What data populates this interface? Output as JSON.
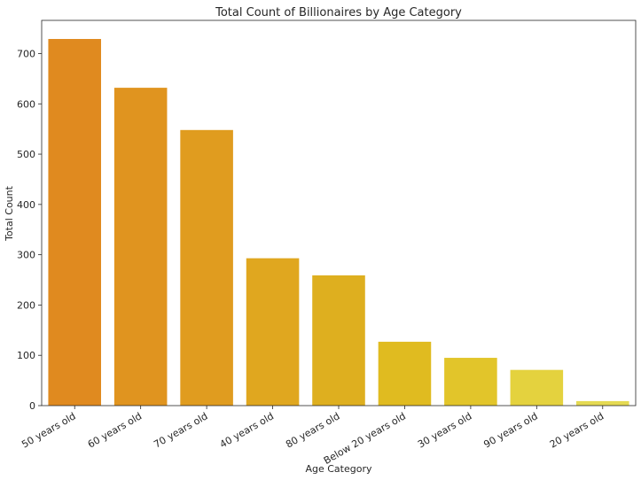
{
  "chart_data": {
    "type": "bar",
    "title": "Total Count of Billionaires by Age Category",
    "xlabel": "Age Category",
    "ylabel": "Total Count",
    "categories": [
      "50 years old",
      "60 years old",
      "70 years old",
      "40 years old",
      "80 years old",
      "Below 20 years old",
      "30 years old",
      "90 years old",
      "20 years old"
    ],
    "values": [
      729,
      632,
      548,
      293,
      259,
      127,
      95,
      71,
      9
    ],
    "colors": [
      "#e08a1f",
      "#e0941f",
      "#e09c1f",
      "#e0a71f",
      "#deaf1f",
      "#e0bb20",
      "#e2c52a",
      "#e4d23e",
      "#e4da52"
    ],
    "yticks": [
      0,
      100,
      200,
      300,
      400,
      500,
      600,
      700
    ],
    "ylim": [
      0,
      766
    ],
    "grid": false,
    "legend": "none"
  }
}
